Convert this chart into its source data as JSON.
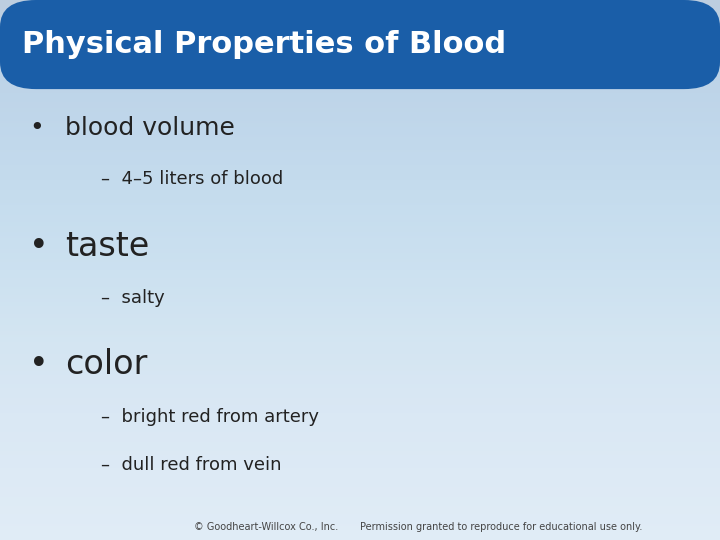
{
  "title": "Physical Properties of Blood",
  "title_color": "#ffffff",
  "title_bg_color": "#1a5ea8",
  "title_fontsize": 22,
  "bg_color_top": "#ddeaf5",
  "bg_color_bottom": "#c0d8ee",
  "bullet_items": [
    {
      "text": "blood volume",
      "fontsize": 18,
      "indent": 0,
      "bullet": true
    },
    {
      "text": "–  4–5 liters of blood",
      "fontsize": 13,
      "indent": 1,
      "bullet": false
    },
    {
      "text": "taste",
      "fontsize": 24,
      "indent": 0,
      "bullet": true
    },
    {
      "text": "–  salty",
      "fontsize": 13,
      "indent": 1,
      "bullet": false
    },
    {
      "text": "color",
      "fontsize": 24,
      "indent": 0,
      "bullet": true
    },
    {
      "text": "–  bright red from artery",
      "fontsize": 13,
      "indent": 1,
      "bullet": false
    },
    {
      "text": "–  dull red from vein",
      "fontsize": 13,
      "indent": 1,
      "bullet": false
    }
  ],
  "footer_left": "© Goodheart-Willcox Co., Inc.",
  "footer_right": "Permission granted to reproduce for educational use only.",
  "footer_fontsize": 7,
  "text_color": "#222222"
}
